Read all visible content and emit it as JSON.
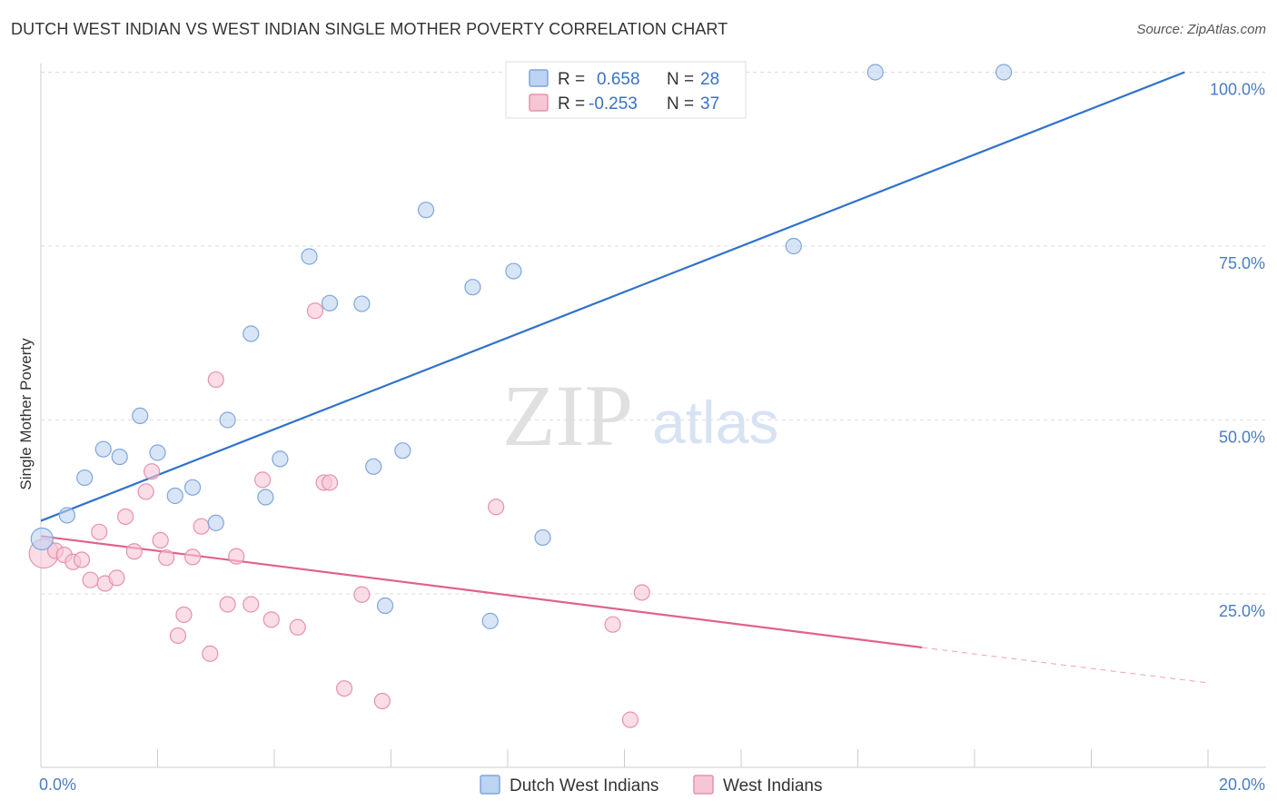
{
  "header": {
    "title": "DUTCH WEST INDIAN VS WEST INDIAN SINGLE MOTHER POVERTY CORRELATION CHART",
    "source": "Source: ZipAtlas.com"
  },
  "watermark": {
    "zip": "ZIP",
    "atlas": "atlas"
  },
  "colors": {
    "blue_fill": "#bcd3f2",
    "blue_stroke": "#7fa6dc",
    "blue_line": "#2f72cc",
    "pink_fill": "#f7c6d5",
    "pink_stroke": "#e792ad",
    "pink_line": "#e0628f",
    "grid": "#dddddd",
    "axis_label": "#4a7cc4"
  },
  "legend": {
    "rows": [
      {
        "r_label": "R =",
        "r_value": "0.658",
        "n_label": "N =",
        "n_value": "28"
      },
      {
        "r_label": "R =",
        "r_value": "-0.253",
        "n_label": "N =",
        "n_value": "37"
      }
    ]
  },
  "chart_data": {
    "type": "scatter",
    "ylabel": "Single Mother Poverty",
    "xlim": [
      0,
      20
    ],
    "ylim": [
      0,
      102
    ],
    "x_tick_labels": [
      {
        "value": 0,
        "label": "0.0%"
      },
      {
        "value": 20,
        "label": "20.0%"
      }
    ],
    "y_tick_labels": [
      {
        "value": 25,
        "label": "25.0%"
      },
      {
        "value": 50,
        "label": "50.0%"
      },
      {
        "value": 75,
        "label": "75.0%"
      },
      {
        "value": 100,
        "label": "100.0%"
      }
    ],
    "grid": "horizontal dashed",
    "legend_position": "top-center",
    "series": [
      {
        "name": "Dutch West Indians",
        "color": "blue",
        "trend": {
          "x": [
            0,
            19.6
          ],
          "y": [
            35.5,
            100
          ]
        },
        "points": [
          [
            0.02,
            32.9
          ],
          [
            0.45,
            36.3
          ],
          [
            0.75,
            41.7
          ],
          [
            1.07,
            45.8
          ],
          [
            1.35,
            44.7
          ],
          [
            1.7,
            50.6
          ],
          [
            2.0,
            45.3
          ],
          [
            2.3,
            39.1
          ],
          [
            2.6,
            40.3
          ],
          [
            3.0,
            35.2
          ],
          [
            3.2,
            50.0
          ],
          [
            3.6,
            62.4
          ],
          [
            3.85,
            38.9
          ],
          [
            4.1,
            44.4
          ],
          [
            4.6,
            73.5
          ],
          [
            4.95,
            66.8
          ],
          [
            5.5,
            66.7
          ],
          [
            5.7,
            43.3
          ],
          [
            5.9,
            23.3
          ],
          [
            6.2,
            45.6
          ],
          [
            6.6,
            80.2
          ],
          [
            7.4,
            69.1
          ],
          [
            7.7,
            21.1
          ],
          [
            8.1,
            71.4
          ],
          [
            8.6,
            33.1
          ],
          [
            12.9,
            75.0
          ],
          [
            14.3,
            100.0
          ],
          [
            16.5,
            100.0
          ]
        ]
      },
      {
        "name": "West Indians",
        "color": "pink",
        "trend": {
          "x": [
            0,
            15.1
          ],
          "y": [
            33.3,
            17.3
          ]
        },
        "trend_dashed": {
          "x": [
            15.1,
            20
          ],
          "y": [
            17.3,
            12.2
          ]
        },
        "points": [
          [
            0.05,
            30.8
          ],
          [
            0.25,
            31.2
          ],
          [
            0.4,
            30.6
          ],
          [
            0.55,
            29.6
          ],
          [
            0.7,
            29.9
          ],
          [
            0.85,
            27.0
          ],
          [
            1.0,
            33.9
          ],
          [
            1.1,
            26.5
          ],
          [
            1.3,
            27.3
          ],
          [
            1.45,
            36.1
          ],
          [
            1.6,
            31.1
          ],
          [
            1.8,
            39.7
          ],
          [
            1.9,
            42.6
          ],
          [
            2.05,
            32.7
          ],
          [
            2.15,
            30.2
          ],
          [
            2.35,
            19.0
          ],
          [
            2.45,
            22.0
          ],
          [
            2.6,
            30.3
          ],
          [
            2.75,
            34.7
          ],
          [
            2.9,
            16.4
          ],
          [
            3.0,
            55.8
          ],
          [
            3.2,
            23.5
          ],
          [
            3.35,
            30.4
          ],
          [
            3.6,
            23.5
          ],
          [
            3.8,
            41.4
          ],
          [
            3.95,
            21.3
          ],
          [
            4.4,
            20.2
          ],
          [
            4.7,
            65.7
          ],
          [
            4.85,
            41.0
          ],
          [
            4.95,
            41.0
          ],
          [
            5.2,
            11.4
          ],
          [
            5.5,
            24.9
          ],
          [
            5.85,
            9.6
          ],
          [
            7.8,
            37.5
          ],
          [
            9.8,
            20.6
          ],
          [
            10.1,
            6.9
          ],
          [
            10.3,
            25.2
          ]
        ]
      }
    ]
  }
}
